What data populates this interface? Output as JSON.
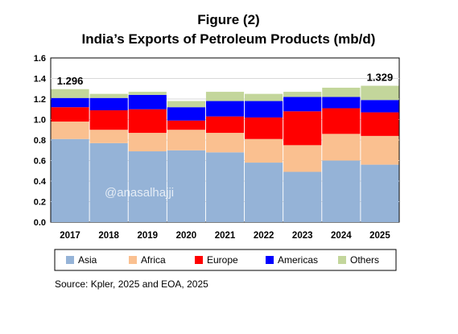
{
  "title": "Figure (2)",
  "subtitle": "India’s Exports of Petroleum Products (mb/d)",
  "watermark": "@anasalhajji",
  "source": "Source: Kpler, 2025 and EOA, 2025",
  "chart_data": {
    "type": "bar",
    "stacked": true,
    "title": "Figure (2)",
    "subtitle": "India’s Exports of Petroleum Products (mb/d)",
    "xlabel": "",
    "ylabel": "",
    "categories": [
      "2017",
      "2018",
      "2019",
      "2020",
      "2021",
      "2022",
      "2023",
      "2024",
      "2025"
    ],
    "ylim": [
      0,
      1.6
    ],
    "yticks": [
      "0.0",
      "0.2",
      "0.4",
      "0.6",
      "0.8",
      "1.0",
      "1.2",
      "1.4",
      "1.6"
    ],
    "grid": true,
    "legend_position": "bottom",
    "series": [
      {
        "name": "Asia",
        "color": "#95b3d7",
        "values": [
          0.81,
          0.77,
          0.69,
          0.7,
          0.68,
          0.58,
          0.49,
          0.6,
          0.56
        ]
      },
      {
        "name": "Africa",
        "color": "#fac090",
        "values": [
          0.17,
          0.13,
          0.18,
          0.2,
          0.19,
          0.23,
          0.26,
          0.26,
          0.28
        ]
      },
      {
        "name": "Europe",
        "color": "#ff0000",
        "values": [
          0.14,
          0.19,
          0.23,
          0.09,
          0.16,
          0.21,
          0.33,
          0.25,
          0.23
        ]
      },
      {
        "name": "Americas",
        "color": "#0000ff",
        "values": [
          0.09,
          0.12,
          0.14,
          0.13,
          0.15,
          0.16,
          0.14,
          0.11,
          0.12
        ]
      },
      {
        "name": "Others",
        "color": "#c3d69b",
        "values": [
          0.086,
          0.04,
          0.03,
          0.06,
          0.09,
          0.07,
          0.05,
          0.09,
          0.139
        ]
      }
    ],
    "annotations": [
      {
        "category": "2017",
        "text": "1.296"
      },
      {
        "category": "2025",
        "text": "1.329"
      }
    ]
  }
}
